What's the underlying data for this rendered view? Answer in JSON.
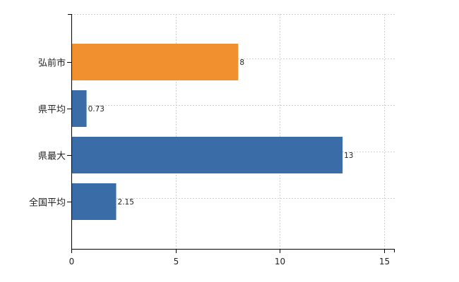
{
  "chart_data": {
    "type": "bar",
    "orientation": "horizontal",
    "title": "",
    "xlabel": "",
    "ylabel": "",
    "categories": [
      "弘前市",
      "県平均",
      "県最大",
      "全国平均"
    ],
    "values": [
      8,
      0.73,
      13,
      2.15
    ],
    "value_labels": [
      "8",
      "0.73",
      "13",
      "2.15"
    ],
    "bar_colors": [
      "#f0902f",
      "#3a6ca8",
      "#3a6ca8",
      "#3a6ca8"
    ],
    "xlim": [
      0,
      15.5
    ],
    "xticks": [
      0,
      5,
      10,
      15
    ],
    "xtick_labels": [
      "0",
      "5",
      "10",
      "15"
    ],
    "grid": true,
    "legend": "none"
  }
}
